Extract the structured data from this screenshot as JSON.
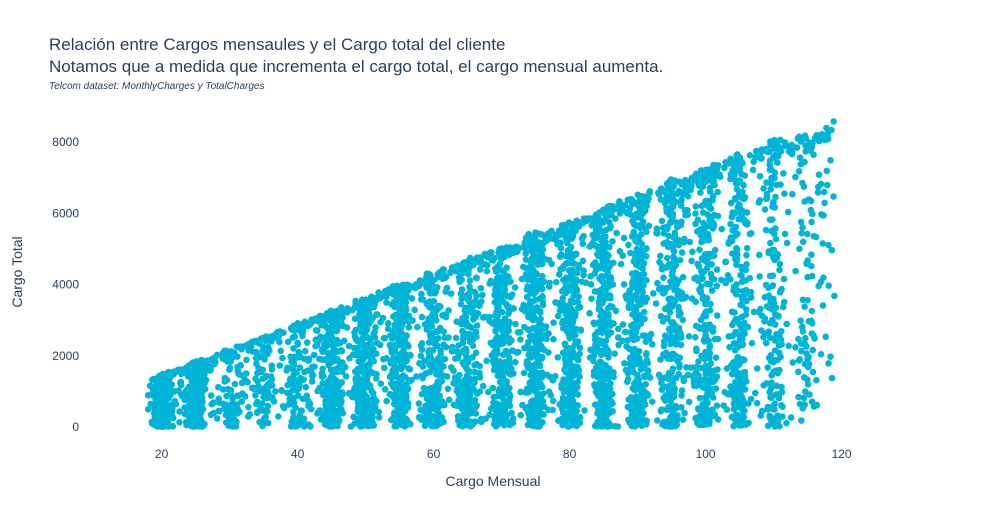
{
  "chart_data": {
    "type": "scatter",
    "title_line1": "Relación entre Cargos mensaules y el Cargo total del cliente",
    "title_line2": "Notamos que a medida que incrementa el cargo total, el cargo mensual aumenta.",
    "subtitle": "Telcom dataset: MonthlyCharges  y TotalCharges",
    "xlabel": "Cargo Mensual",
    "ylabel": "Cargo Total",
    "xlim": [
      8,
      133
    ],
    "ylim": [
      -500,
      8900
    ],
    "xticks": [
      20,
      40,
      60,
      80,
      100,
      120
    ],
    "yticks": [
      0,
      2000,
      4000,
      6000,
      8000
    ],
    "grid": false,
    "marker_color": "#00b4d8",
    "clusters": [
      {
        "x": 20,
        "spread": 1.2,
        "ymax": 1550,
        "n": 320
      },
      {
        "x": 25,
        "spread": 1.3,
        "ymax": 1950,
        "n": 260
      },
      {
        "x": 30,
        "spread": 1.5,
        "ymax": 2150,
        "n": 40
      },
      {
        "x": 35,
        "spread": 1.5,
        "ymax": 2500,
        "n": 40
      },
      {
        "x": 40,
        "spread": 1.5,
        "ymax": 2800,
        "n": 60
      },
      {
        "x": 45,
        "spread": 1.6,
        "ymax": 3200,
        "n": 180
      },
      {
        "x": 50,
        "spread": 1.6,
        "ymax": 3600,
        "n": 220
      },
      {
        "x": 55,
        "spread": 1.6,
        "ymax": 3950,
        "n": 230
      },
      {
        "x": 60,
        "spread": 1.6,
        "ymax": 4300,
        "n": 200
      },
      {
        "x": 65,
        "spread": 1.6,
        "ymax": 4700,
        "n": 180
      },
      {
        "x": 70,
        "spread": 1.6,
        "ymax": 5100,
        "n": 240
      },
      {
        "x": 75,
        "spread": 1.6,
        "ymax": 5450,
        "n": 260
      },
      {
        "x": 80,
        "spread": 1.6,
        "ymax": 5850,
        "n": 260
      },
      {
        "x": 85,
        "spread": 1.6,
        "ymax": 6250,
        "n": 280
      },
      {
        "x": 90,
        "spread": 1.6,
        "ymax": 6600,
        "n": 260
      },
      {
        "x": 95,
        "spread": 1.6,
        "ymax": 6950,
        "n": 250
      },
      {
        "x": 100,
        "spread": 1.6,
        "ymax": 7300,
        "n": 230
      },
      {
        "x": 105,
        "spread": 1.6,
        "ymax": 7700,
        "n": 190
      },
      {
        "x": 110,
        "spread": 1.6,
        "ymax": 8100,
        "n": 130
      },
      {
        "x": 115,
        "spread": 1.4,
        "ymax": 8500,
        "n": 60
      }
    ],
    "scatter_fill": [
      {
        "xmin": 18,
        "xmax": 119,
        "n": 900
      }
    ]
  }
}
